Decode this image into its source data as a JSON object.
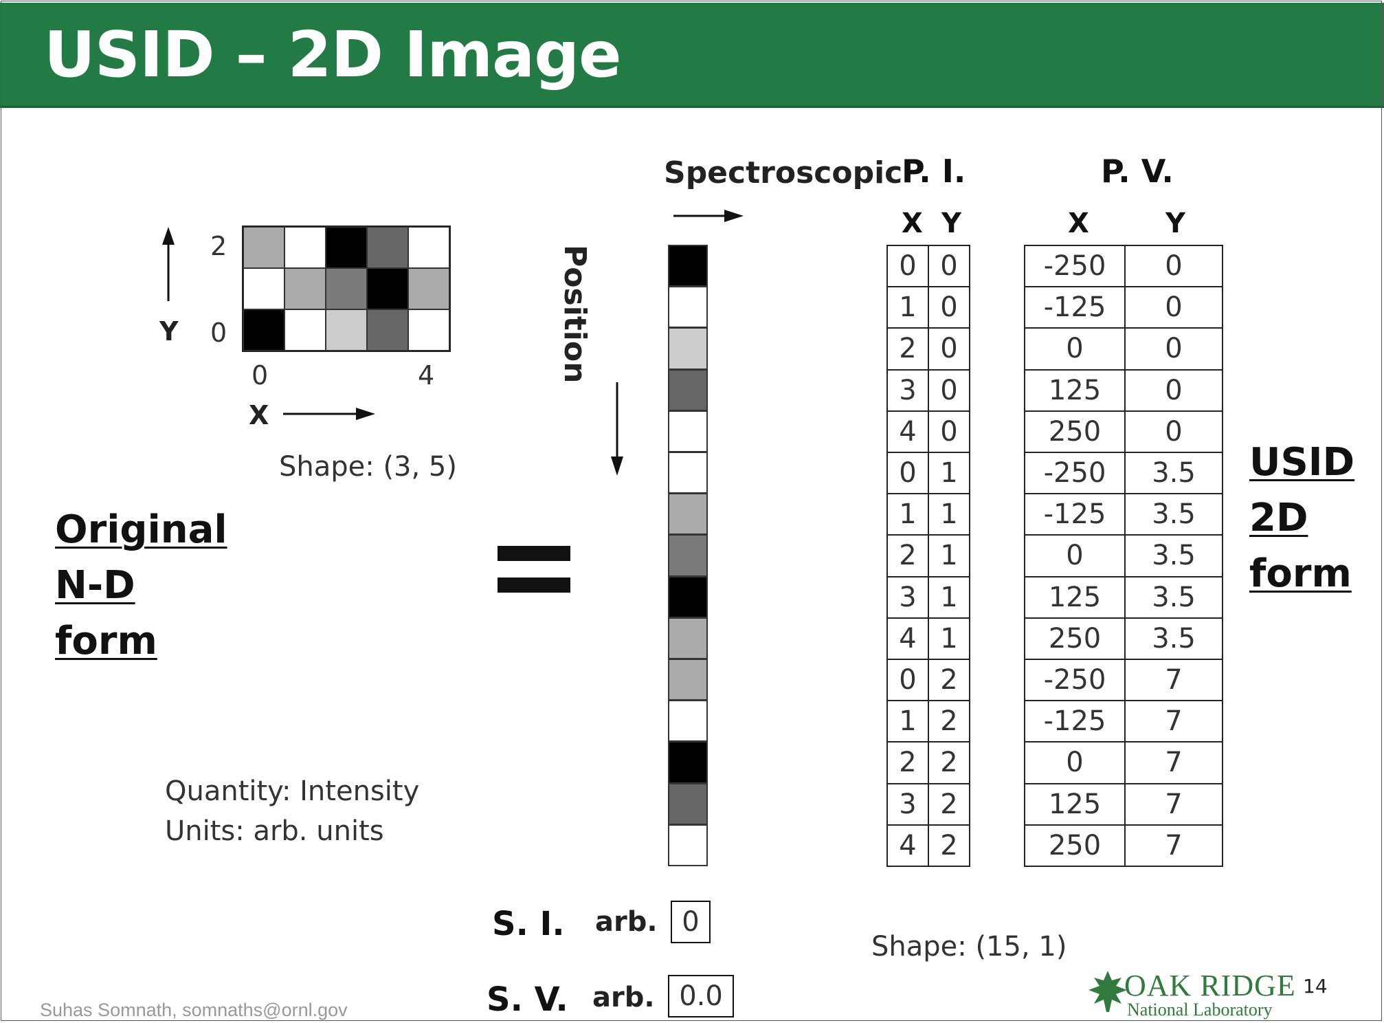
{
  "slide": {
    "title": "USID – 2D Image",
    "page_number": "14",
    "footer": "Suhas Somnath, somnaths@ornl.gov",
    "logo": {
      "line1": "OAK RIDGE",
      "line2": "National Laboratory"
    }
  },
  "left": {
    "label_lines": [
      "Original",
      "N-D",
      "form"
    ],
    "axis_y": {
      "name": "Y",
      "tick_top": "2",
      "tick_bottom": "0"
    },
    "axis_x": {
      "name": "X",
      "tick_left": "0",
      "tick_right": "4"
    },
    "shape": "Shape: (3, 5)",
    "grid_rows": [
      [
        "#aaaaaa",
        "#ffffff",
        "#000000",
        "#666666",
        "#ffffff"
      ],
      [
        "#ffffff",
        "#aaaaaa",
        "#7a7a7a",
        "#000000",
        "#aaaaaa"
      ],
      [
        "#000000",
        "#ffffff",
        "#cccccc",
        "#666666",
        "#ffffff"
      ]
    ],
    "quantity": "Quantity: Intensity",
    "units": "Units: arb. units"
  },
  "equals": "=",
  "middle": {
    "spectroscopic_label": "Spectroscopic",
    "position_label": "Position",
    "column_colors": [
      "#000000",
      "#ffffff",
      "#cccccc",
      "#666666",
      "#ffffff",
      "#ffffff",
      "#aaaaaa",
      "#7a7a7a",
      "#000000",
      "#aaaaaa",
      "#aaaaaa",
      "#ffffff",
      "#000000",
      "#666666",
      "#ffffff"
    ],
    "si": {
      "label": "S. I.",
      "unit": "arb.",
      "value": "0"
    },
    "sv": {
      "label": "S. V.",
      "unit": "arb.",
      "value": "0.0"
    }
  },
  "pi": {
    "title": "P. I.",
    "headers": [
      "X",
      "Y"
    ],
    "rows": [
      [
        "0",
        "0"
      ],
      [
        "1",
        "0"
      ],
      [
        "2",
        "0"
      ],
      [
        "3",
        "0"
      ],
      [
        "4",
        "0"
      ],
      [
        "0",
        "1"
      ],
      [
        "1",
        "1"
      ],
      [
        "2",
        "1"
      ],
      [
        "3",
        "1"
      ],
      [
        "4",
        "1"
      ],
      [
        "0",
        "2"
      ],
      [
        "1",
        "2"
      ],
      [
        "2",
        "2"
      ],
      [
        "3",
        "2"
      ],
      [
        "4",
        "2"
      ]
    ]
  },
  "pv": {
    "title": "P. V.",
    "headers": [
      "X",
      "Y"
    ],
    "rows": [
      [
        "-250",
        "0"
      ],
      [
        "-125",
        "0"
      ],
      [
        "0",
        "0"
      ],
      [
        "125",
        "0"
      ],
      [
        "250",
        "0"
      ],
      [
        "-250",
        "3.5"
      ],
      [
        "-125",
        "3.5"
      ],
      [
        "0",
        "3.5"
      ],
      [
        "125",
        "3.5"
      ],
      [
        "250",
        "3.5"
      ],
      [
        "-250",
        "7"
      ],
      [
        "-125",
        "7"
      ],
      [
        "0",
        "7"
      ],
      [
        "125",
        "7"
      ],
      [
        "250",
        "7"
      ]
    ]
  },
  "right": {
    "label_lines": [
      "USID",
      "2D",
      "form"
    ],
    "shape": "Shape: (15, 1)"
  }
}
